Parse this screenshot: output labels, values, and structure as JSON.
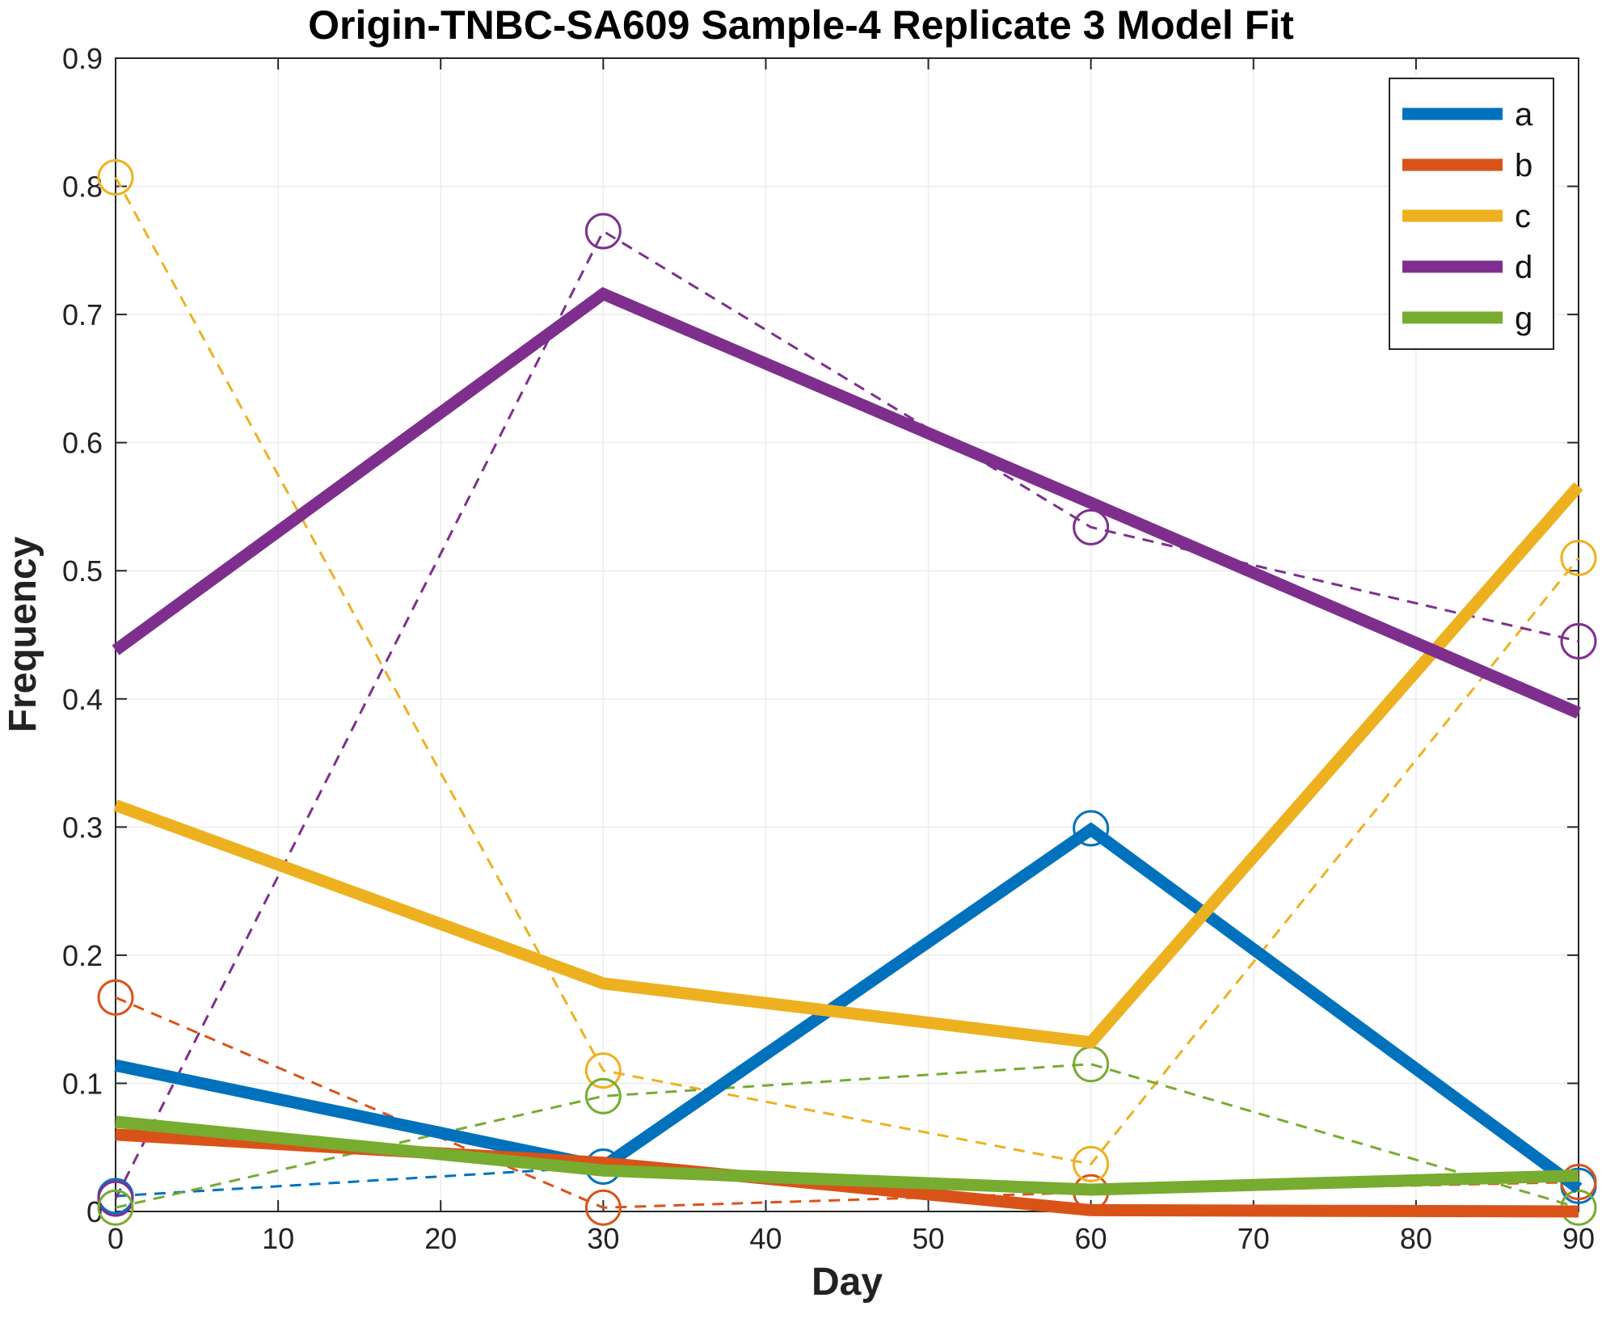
{
  "chart_data": {
    "type": "line",
    "title": "Origin-TNBC-SA609 Sample-4 Replicate 3 Model Fit",
    "xlabel": "Day",
    "ylabel": "Frequency",
    "xlim": [
      0,
      90
    ],
    "ylim": [
      0,
      0.9
    ],
    "xticks": [
      "0",
      "10",
      "20",
      "30",
      "40",
      "50",
      "60",
      "70",
      "80",
      "90"
    ],
    "yticks": [
      "0",
      "0.1",
      "0.2",
      "0.3",
      "0.4",
      "0.5",
      "0.6",
      "0.7",
      "0.8",
      "0.9"
    ],
    "grid": true,
    "legend_position": "top-right",
    "x": [
      0,
      30,
      60,
      90
    ],
    "series": [
      {
        "name": "a",
        "color": "#0072BD",
        "model": [
          0.114,
          0.035,
          0.298,
          0.018
        ],
        "observed": [
          0.012,
          0.035,
          0.299,
          0.02
        ]
      },
      {
        "name": "b",
        "color": "#D95319",
        "model": [
          0.06,
          0.038,
          0.001,
          0.0
        ],
        "observed": [
          0.167,
          0.003,
          0.015,
          0.023
        ]
      },
      {
        "name": "c",
        "color": "#EDB120",
        "model": [
          0.317,
          0.178,
          0.132,
          0.566
        ],
        "observed": [
          0.807,
          0.11,
          0.037,
          0.51
        ]
      },
      {
        "name": "d",
        "color": "#7E2F8E",
        "model": [
          0.438,
          0.716,
          0.553,
          0.389
        ],
        "observed": [
          0.01,
          0.765,
          0.534,
          0.445
        ]
      },
      {
        "name": "g",
        "color": "#77AC30",
        "model": [
          0.07,
          0.032,
          0.017,
          0.028
        ],
        "observed": [
          0.003,
          0.09,
          0.115,
          0.003
        ]
      }
    ]
  }
}
